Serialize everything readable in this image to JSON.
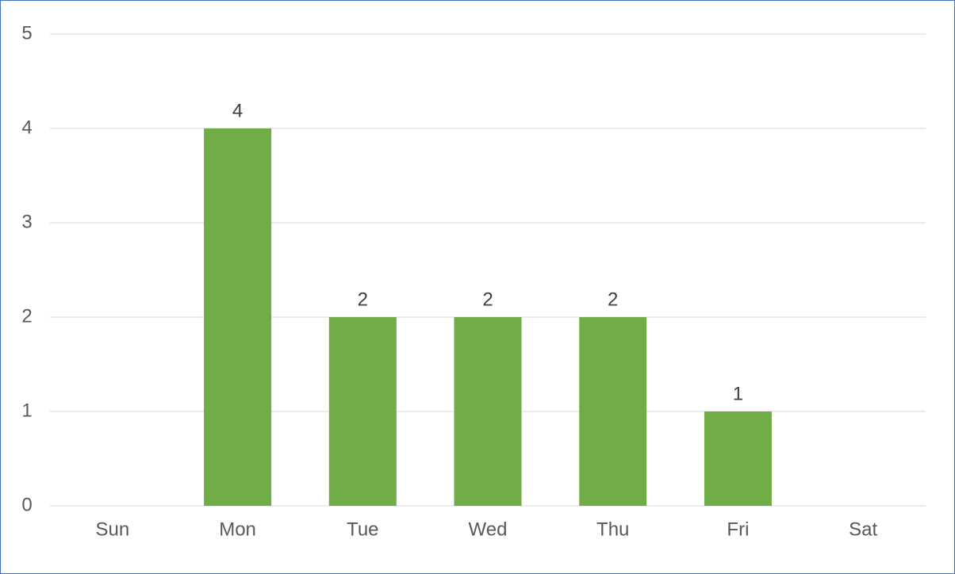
{
  "chart_data": {
    "type": "bar",
    "categories": [
      "Sun",
      "Mon",
      "Tue",
      "Wed",
      "Thu",
      "Fri",
      "Sat"
    ],
    "values": [
      0,
      4,
      2,
      2,
      2,
      1,
      0
    ],
    "value_labels": [
      null,
      "4",
      "2",
      "2",
      "2",
      "1",
      null
    ],
    "color": "#70ad47",
    "ylim": [
      0,
      5
    ],
    "yticks": [
      0,
      1,
      2,
      3,
      4,
      5
    ],
    "grid": true
  }
}
